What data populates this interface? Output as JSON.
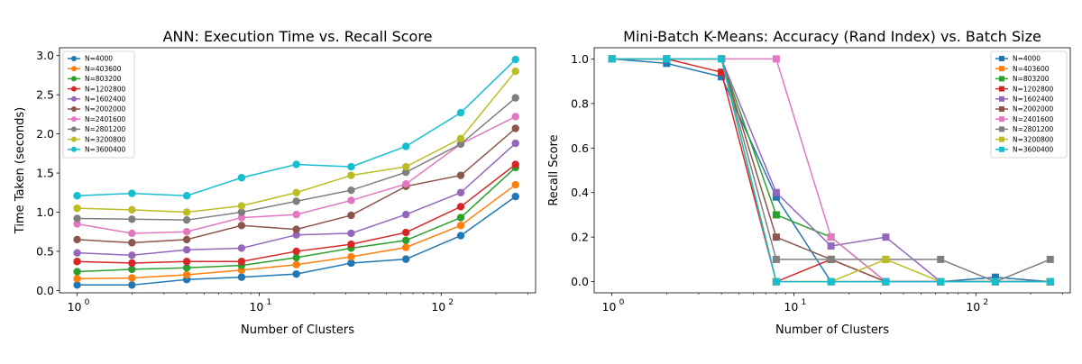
{
  "chart_data": [
    {
      "type": "line",
      "title": "ANN: Execution Time vs. Recall Score",
      "xlabel": "Number of Clusters",
      "ylabel": "Time Taken (seconds)",
      "xscale": "log",
      "xlim": [
        0.8,
        330
      ],
      "ylim": [
        -0.03,
        3.1
      ],
      "x_ticks": [
        1,
        10,
        100
      ],
      "x_tick_labels": [
        "10",
        "10",
        "10"
      ],
      "x_tick_exponents": [
        "0",
        "1",
        "2"
      ],
      "y_ticks": [
        0,
        0.5,
        1,
        1.5,
        2,
        2.5,
        3
      ],
      "y_tick_labels": [
        "0.0",
        "0.5",
        "1.0",
        "1.5",
        "2.0",
        "2.5",
        "3.0"
      ],
      "marker": "circle",
      "legend_position": "upper-left",
      "grid": false,
      "x": [
        1,
        2,
        4,
        8,
        16,
        32,
        64,
        128,
        256
      ],
      "series": [
        {
          "name": "N=4000",
          "color": "#1f77b4",
          "values": [
            0.07,
            0.07,
            0.14,
            0.17,
            0.21,
            0.35,
            0.4,
            0.7,
            1.2
          ]
        },
        {
          "name": "N=403600",
          "color": "#ff7f0e",
          "values": [
            0.15,
            0.16,
            0.2,
            0.26,
            0.33,
            0.43,
            0.55,
            0.83,
            1.35
          ]
        },
        {
          "name": "N=803200",
          "color": "#2ca02c",
          "values": [
            0.24,
            0.27,
            0.29,
            0.32,
            0.42,
            0.54,
            0.64,
            0.93,
            1.57
          ]
        },
        {
          "name": "N=1202800",
          "color": "#d62728",
          "values": [
            0.37,
            0.35,
            0.37,
            0.37,
            0.5,
            0.59,
            0.74,
            1.07,
            1.61
          ]
        },
        {
          "name": "N=1602400",
          "color": "#9467bd",
          "values": [
            0.48,
            0.45,
            0.52,
            0.54,
            0.71,
            0.73,
            0.97,
            1.25,
            1.88
          ]
        },
        {
          "name": "N=2002000",
          "color": "#8c564b",
          "values": [
            0.65,
            0.61,
            0.65,
            0.83,
            0.78,
            0.96,
            1.33,
            1.47,
            2.07
          ]
        },
        {
          "name": "N=2401600",
          "color": "#e377c2",
          "values": [
            0.85,
            0.73,
            0.75,
            0.93,
            0.97,
            1.15,
            1.36,
            1.87,
            2.22
          ]
        },
        {
          "name": "N=2801200",
          "color": "#7f7f7f",
          "values": [
            0.92,
            0.91,
            0.9,
            1.0,
            1.14,
            1.28,
            1.51,
            1.87,
            2.46
          ]
        },
        {
          "name": "N=3200800",
          "color": "#bcbd22",
          "values": [
            1.05,
            1.03,
            1.0,
            1.08,
            1.25,
            1.47,
            1.58,
            1.94,
            2.8
          ]
        },
        {
          "name": "N=3600400",
          "color": "#17becf",
          "values": [
            1.21,
            1.24,
            1.21,
            1.44,
            1.61,
            1.58,
            1.84,
            2.27,
            2.95
          ]
        }
      ]
    },
    {
      "type": "line",
      "title": "Mini-Batch K-Means: Accuracy (Rand Index) vs. Batch Size",
      "xlabel": "Number of Clusters",
      "ylabel": "Recall Score",
      "xscale": "log",
      "xlim": [
        0.8,
        330
      ],
      "ylim": [
        -0.05,
        1.05
      ],
      "x_ticks": [
        1,
        10,
        100
      ],
      "x_tick_labels": [
        "10",
        "10",
        "10"
      ],
      "x_tick_exponents": [
        "0",
        "1",
        "2"
      ],
      "y_ticks": [
        0,
        0.2,
        0.4,
        0.6,
        0.8,
        1.0
      ],
      "y_tick_labels": [
        "0.0",
        "0.2",
        "0.4",
        "0.6",
        "0.8",
        "1.0"
      ],
      "marker": "square",
      "legend_position": "upper-right",
      "grid": false,
      "x": [
        1,
        2,
        4,
        8,
        16,
        32,
        64,
        128,
        256
      ],
      "series": [
        {
          "name": "N=4000",
          "color": "#1f77b4",
          "values": [
            1.0,
            0.98,
            0.92,
            0.38,
            0.0,
            0.0,
            0.0,
            0.02,
            0.0
          ]
        },
        {
          "name": "N=403600",
          "color": "#ff7f0e",
          "values": [
            1.0,
            1.0,
            1.0,
            0.0,
            0.0,
            0.0,
            0.0,
            0.0,
            0.0
          ]
        },
        {
          "name": "N=803200",
          "color": "#2ca02c",
          "values": [
            1.0,
            1.0,
            1.0,
            0.3,
            0.2,
            0.0,
            0.0,
            0.0,
            0.0
          ]
        },
        {
          "name": "N=1202800",
          "color": "#d62728",
          "values": [
            1.0,
            1.0,
            0.94,
            0.0,
            0.1,
            0.0,
            0.0,
            0.0,
            0.0
          ]
        },
        {
          "name": "N=1602400",
          "color": "#9467bd",
          "values": [
            1.0,
            1.0,
            1.0,
            0.4,
            0.16,
            0.2,
            0.0,
            0.0,
            0.0
          ]
        },
        {
          "name": "N=2002000",
          "color": "#8c564b",
          "values": [
            1.0,
            1.0,
            1.0,
            0.2,
            0.1,
            0.0,
            0.0,
            0.0,
            0.0
          ]
        },
        {
          "name": "N=2401600",
          "color": "#e377c2",
          "values": [
            1.0,
            1.0,
            1.0,
            1.0,
            0.2,
            0.0,
            0.0,
            0.0,
            0.0
          ]
        },
        {
          "name": "N=2801200",
          "color": "#7f7f7f",
          "values": [
            1.0,
            1.0,
            1.0,
            0.1,
            0.1,
            0.1,
            0.1,
            0.0,
            0.1
          ]
        },
        {
          "name": "N=3200800",
          "color": "#bcbd22",
          "values": [
            1.0,
            1.0,
            1.0,
            0.0,
            0.0,
            0.1,
            0.0,
            0.0,
            0.0
          ]
        },
        {
          "name": "N=3600400",
          "color": "#17becf",
          "values": [
            1.0,
            1.0,
            1.0,
            0.0,
            0.0,
            0.0,
            0.0,
            0.0,
            0.0
          ]
        }
      ]
    }
  ]
}
